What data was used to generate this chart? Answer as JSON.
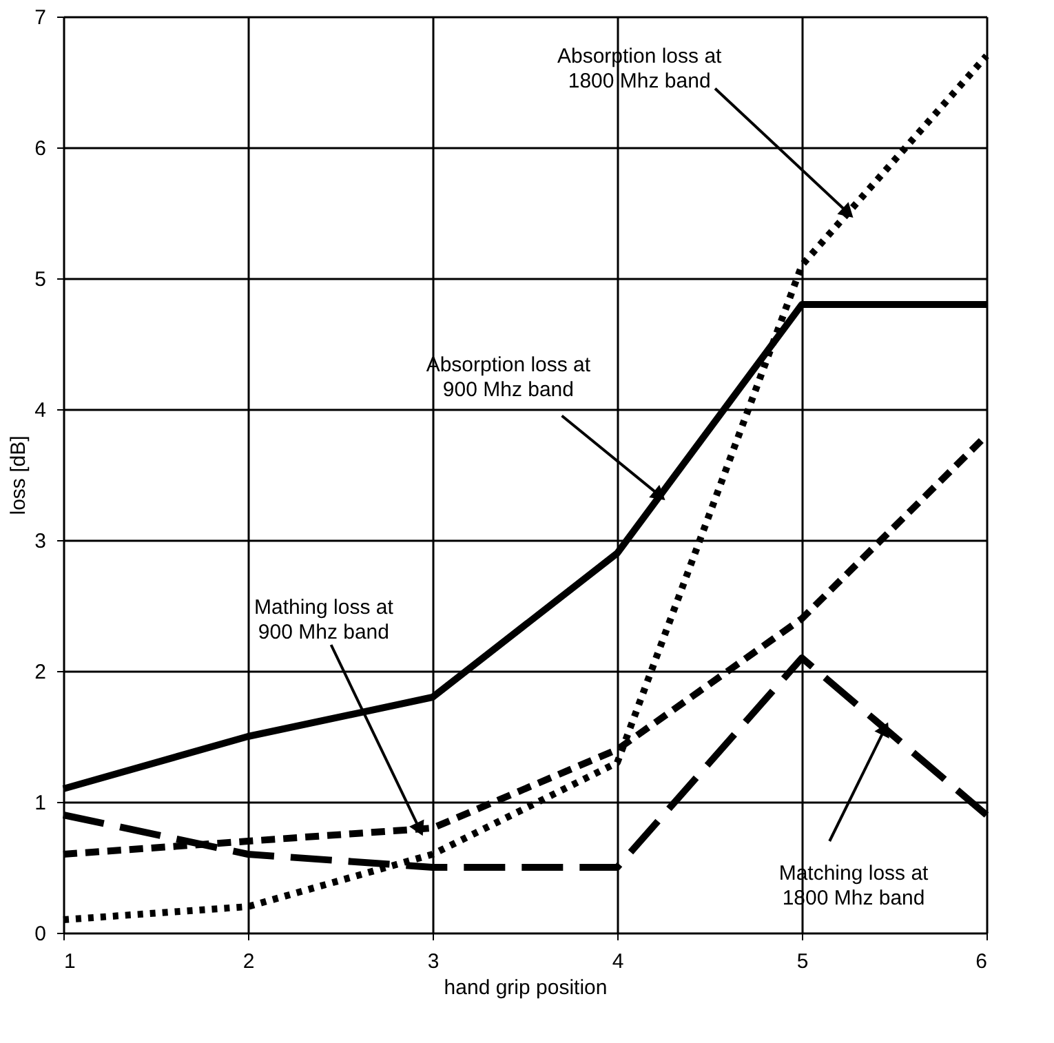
{
  "chart_data": {
    "type": "line",
    "xlabel": "hand grip position",
    "ylabel": "loss [dB]",
    "x": [
      1,
      2,
      3,
      4,
      5,
      6
    ],
    "xlim": [
      1,
      6
    ],
    "xticks": [
      1,
      2,
      3,
      4,
      5,
      6
    ],
    "ylim": [
      0,
      7
    ],
    "yticks": [
      0,
      1,
      2,
      3,
      4,
      5,
      6,
      7
    ],
    "grid": true,
    "marker": "none",
    "series": [
      {
        "color": "#000000",
        "line_style": "solid",
        "values": [
          1.1,
          1.5,
          1.8,
          2.9,
          4.8,
          4.8
        ]
      },
      {
        "color": "#000000",
        "line_style": "dotted",
        "values": [
          0.1,
          0.2,
          0.6,
          1.3,
          5.1,
          6.7
        ]
      },
      {
        "color": "#000000",
        "line_style": "dashed",
        "values": [
          0.6,
          0.7,
          0.8,
          1.4,
          2.4,
          3.8
        ]
      },
      {
        "color": "#000000",
        "line_style": "dashed",
        "values": [
          0.9,
          0.6,
          0.5,
          0.5,
          2.1,
          0.9
        ]
      }
    ],
    "annotations": [
      {
        "text": "Absorption loss at\n1800 Mhz band",
        "x": 5.25,
        "y": 5.5
      },
      {
        "text": "Absorption loss at\n900 Mhz band",
        "x": 4.23,
        "y": 3.34
      },
      {
        "text": "Mathing loss at\n900 Mhz band",
        "x": 2.93,
        "y": 0.79
      },
      {
        "text": "Matching loss at\n1800 Mhz band",
        "x": 5.45,
        "y": 1.56
      }
    ]
  }
}
